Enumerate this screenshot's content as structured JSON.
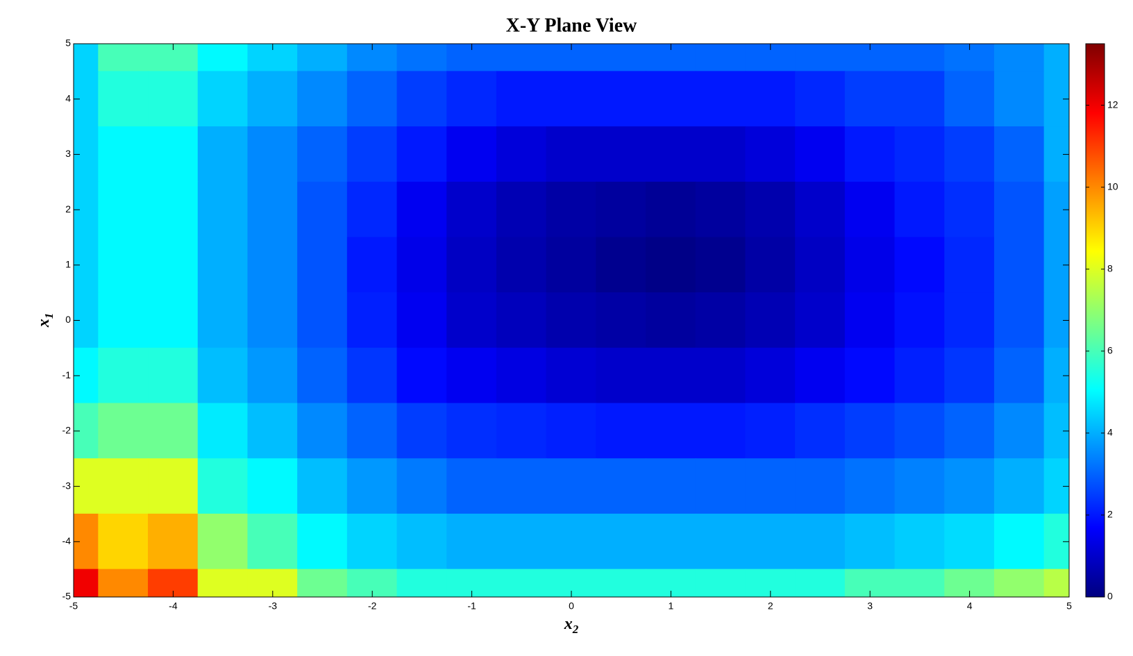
{
  "chart_data": {
    "type": "heatmap",
    "title": "X-Y Plane View",
    "xlabel": {
      "base": "x",
      "sub": "2"
    },
    "ylabel": {
      "base": "x",
      "sub": "1"
    },
    "colormap": "jet",
    "x": [
      -5,
      -4.5,
      -4,
      -3.5,
      -3,
      -2.5,
      -2,
      -1.5,
      -1,
      -0.5,
      0,
      0.5,
      1,
      1.5,
      2,
      2.5,
      3,
      3.5,
      4,
      4.5,
      5
    ],
    "y": [
      5,
      4,
      3,
      2,
      1,
      0,
      -1,
      -2,
      -3,
      -4,
      -5
    ],
    "z": [
      [
        4.5,
        6,
        6,
        5,
        4.5,
        4,
        3.5,
        3.2,
        3,
        3,
        3,
        3,
        3,
        3,
        3,
        3,
        3,
        3,
        3.2,
        3.5,
        4
      ],
      [
        4.5,
        5.5,
        5.5,
        4.5,
        4,
        3.5,
        3,
        2.5,
        2.2,
        2,
        2,
        2,
        2,
        2,
        2,
        2.2,
        2.5,
        2.5,
        3,
        3.5,
        4
      ],
      [
        4.5,
        5,
        5,
        4,
        3.5,
        3,
        2.5,
        2,
        1.5,
        1.2,
        1,
        1,
        1,
        1,
        1.2,
        1.5,
        2,
        2.2,
        2.5,
        3,
        4
      ],
      [
        4.5,
        5,
        5,
        4,
        3.5,
        2.8,
        2.2,
        1.5,
        1,
        0.7,
        0.5,
        0.4,
        0.3,
        0.4,
        0.6,
        1,
        1.5,
        2,
        2.3,
        2.8,
        3.8
      ],
      [
        4.5,
        5,
        5,
        4,
        3.5,
        2.8,
        2,
        1.4,
        0.9,
        0.6,
        0.4,
        0.2,
        0.1,
        0.2,
        0.5,
        0.9,
        1.4,
        1.8,
        2.2,
        2.8,
        3.8
      ],
      [
        4.5,
        5,
        5,
        4,
        3.5,
        2.8,
        2.1,
        1.5,
        1,
        0.8,
        0.6,
        0.5,
        0.4,
        0.5,
        0.7,
        1,
        1.5,
        1.9,
        2.2,
        2.8,
        3.8
      ],
      [
        5,
        5.5,
        5.5,
        4.2,
        3.7,
        3,
        2.4,
        1.8,
        1.5,
        1.3,
        1.1,
        1,
        1,
        1,
        1.2,
        1.5,
        1.8,
        2.1,
        2.4,
        3,
        4
      ],
      [
        6,
        6.5,
        6.5,
        4.8,
        4.2,
        3.5,
        3,
        2.5,
        2.3,
        2.2,
        2.1,
        2,
        2,
        2,
        2.1,
        2.3,
        2.5,
        2.7,
        3,
        3.5,
        4.2
      ],
      [
        8,
        8,
        8,
        5.5,
        5,
        4.2,
        3.7,
        3.3,
        3,
        3,
        3,
        3,
        3,
        3,
        3,
        3,
        3.2,
        3.4,
        3.6,
        4,
        4.5
      ],
      [
        10,
        9,
        9.5,
        7,
        6,
        5,
        4.5,
        4.2,
        4,
        4,
        4,
        4,
        4,
        4,
        4,
        4,
        4.2,
        4.4,
        4.6,
        5,
        5.5
      ],
      [
        12,
        10,
        11,
        8,
        8,
        6.5,
        6,
        5.5,
        5.5,
        5.5,
        5.5,
        5.5,
        5.5,
        5.5,
        5.5,
        5.5,
        6,
        6,
        6.5,
        7,
        7.5
      ]
    ],
    "xlim": [
      -5,
      5
    ],
    "ylim": [
      -5,
      5
    ],
    "xticks": [
      -5,
      -4,
      -3,
      -2,
      -1,
      0,
      1,
      2,
      3,
      4,
      5
    ],
    "yticks": [
      -5,
      -4,
      -3,
      -2,
      -1,
      0,
      1,
      2,
      3,
      4,
      5
    ],
    "clim": [
      0,
      13.5
    ],
    "cticks": [
      0,
      2,
      4,
      6,
      8,
      10,
      12
    ]
  }
}
